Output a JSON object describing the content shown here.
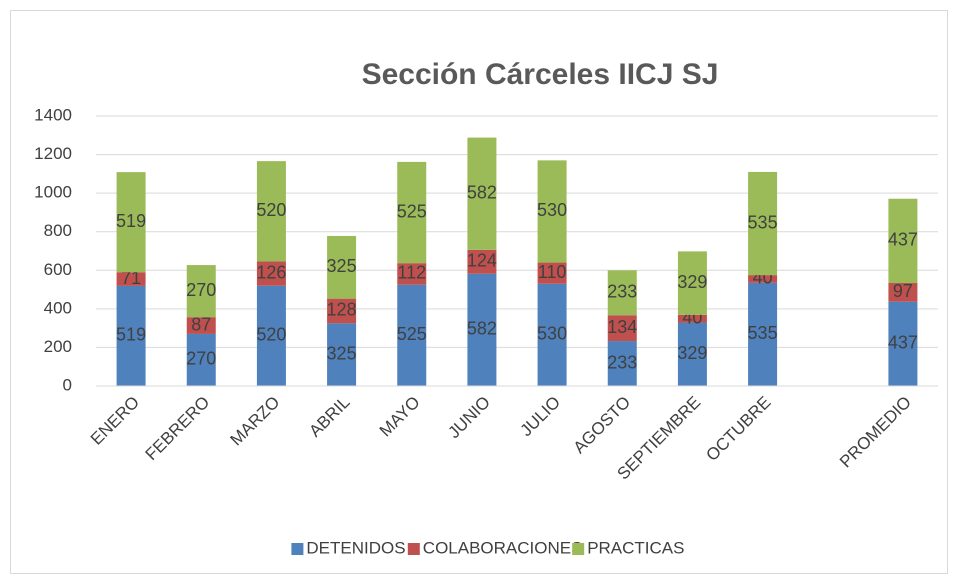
{
  "chart_data": {
    "type": "bar",
    "stacked": true,
    "title": "Sección Cárceles IICJ SJ",
    "categories": [
      "ENERO",
      "FEBRERO",
      "MARZO",
      "ABRIL",
      "MAYO",
      "JUNIO",
      "JULIO",
      "AGOSTO",
      "SEPTIEMBRE",
      "OCTUBRE",
      null,
      "PROMEDIO"
    ],
    "series": [
      {
        "name": "DETENIDOS",
        "color": "#4f81bd",
        "values": [
          519,
          270,
          520,
          325,
          525,
          582,
          530,
          233,
          329,
          535,
          null,
          437
        ]
      },
      {
        "name": "COLABORACIONES",
        "color": "#c0504d",
        "values": [
          71,
          87,
          126,
          128,
          112,
          124,
          110,
          134,
          40,
          40,
          null,
          97
        ]
      },
      {
        "name": "PRACTICAS",
        "color": "#9bbb59",
        "values": [
          519,
          270,
          520,
          325,
          525,
          582,
          530,
          233,
          329,
          535,
          null,
          437
        ]
      }
    ],
    "ylim": [
      0,
      1400
    ],
    "yticks": [
      0,
      200,
      400,
      600,
      800,
      1000,
      1200,
      1400
    ],
    "grid": true,
    "legend": "bottom"
  }
}
